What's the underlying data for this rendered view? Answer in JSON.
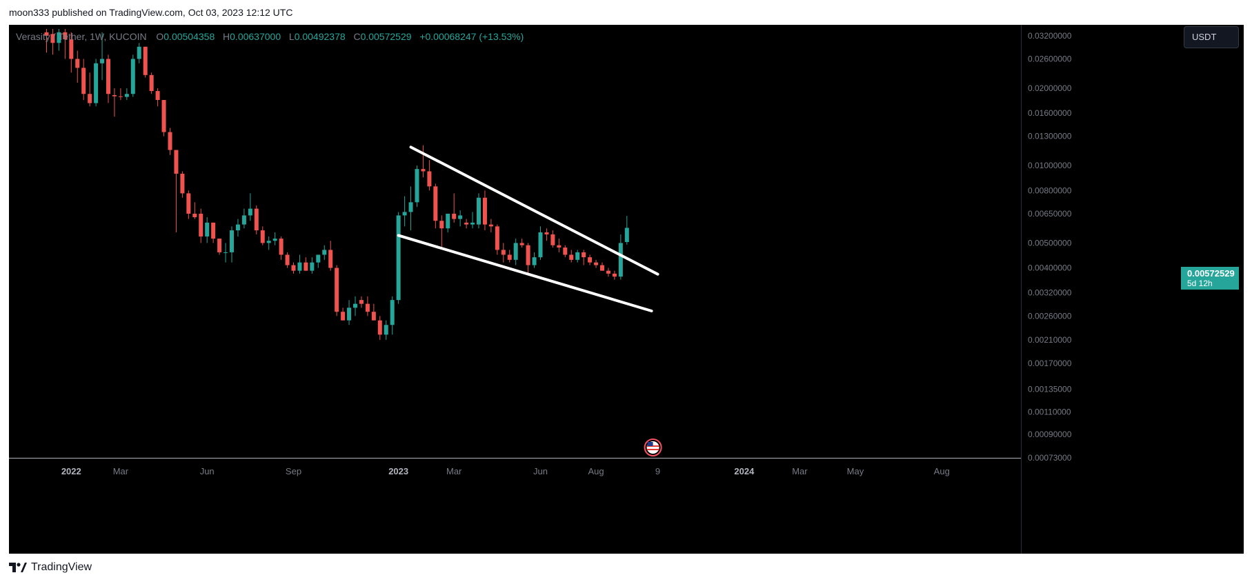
{
  "caption": "moon333 published on TradingView.com, Oct 03, 2023 12:12 UTC",
  "legend": {
    "symbol": "Verasity / Tether, 1W, KUCOIN",
    "o_label": "O",
    "o_value": "0.00504358",
    "h_label": "H",
    "h_value": "0.00637000",
    "l_label": "L",
    "l_value": "0.00492378",
    "c_label": "C",
    "c_value": "0.00572529",
    "change": "+0.00068247 (+13.53%)"
  },
  "unit_button": "USDT",
  "last_price": {
    "price": "0.00572529",
    "countdown": "5d 12h"
  },
  "footer_brand": "TradingView",
  "colors": {
    "up": "#26a69a",
    "down": "#ef5350",
    "background": "#000000",
    "trendline": "#ffffff",
    "axis_text": "#787b86"
  },
  "chart_data": {
    "type": "candlestick",
    "interval": "1W",
    "exchange": "KUCOIN",
    "y_scale": "log",
    "ylim": [
      0.00073,
      0.034
    ],
    "y_ticks": [
      "0.03200000",
      "0.02600000",
      "0.02000000",
      "0.01600000",
      "0.01300000",
      "0.01000000",
      "0.00800000",
      "0.00650000",
      "0.00500000",
      "0.00400000",
      "0.00320000",
      "0.00260000",
      "0.00210000",
      "0.00170000",
      "0.00135000",
      "0.00110000",
      "0.00090000",
      "0.00073000"
    ],
    "x_ticks": [
      {
        "label": "2022",
        "bold": true,
        "index": 4
      },
      {
        "label": "Mar",
        "bold": false,
        "index": 12
      },
      {
        "label": "Jun",
        "bold": false,
        "index": 26
      },
      {
        "label": "Sep",
        "bold": false,
        "index": 40
      },
      {
        "label": "2023",
        "bold": true,
        "index": 57
      },
      {
        "label": "Mar",
        "bold": false,
        "index": 66
      },
      {
        "label": "Jun",
        "bold": false,
        "index": 80
      },
      {
        "label": "Aug",
        "bold": false,
        "index": 89
      },
      {
        "label": "9",
        "bold": false,
        "index": 99
      },
      {
        "label": "2024",
        "bold": true,
        "index": 113
      },
      {
        "label": "Mar",
        "bold": false,
        "index": 122
      },
      {
        "label": "May",
        "bold": false,
        "index": 131
      },
      {
        "label": "Aug",
        "bold": false,
        "index": 145
      }
    ],
    "candles": [
      {
        "o": 0.033,
        "h": 0.034,
        "l": 0.0275,
        "c": 0.032
      },
      {
        "o": 0.0325,
        "h": 0.034,
        "l": 0.027,
        "c": 0.03
      },
      {
        "o": 0.03,
        "h": 0.034,
        "l": 0.028,
        "c": 0.033
      },
      {
        "o": 0.033,
        "h": 0.034,
        "l": 0.026,
        "c": 0.031
      },
      {
        "o": 0.031,
        "h": 0.033,
        "l": 0.023,
        "c": 0.026
      },
      {
        "o": 0.026,
        "h": 0.028,
        "l": 0.021,
        "c": 0.024
      },
      {
        "o": 0.024,
        "h": 0.026,
        "l": 0.018,
        "c": 0.019
      },
      {
        "o": 0.019,
        "h": 0.023,
        "l": 0.017,
        "c": 0.0175
      },
      {
        "o": 0.0175,
        "h": 0.026,
        "l": 0.017,
        "c": 0.025
      },
      {
        "o": 0.025,
        "h": 0.033,
        "l": 0.0215,
        "c": 0.026
      },
      {
        "o": 0.026,
        "h": 0.027,
        "l": 0.0175,
        "c": 0.019
      },
      {
        "o": 0.0188,
        "h": 0.02,
        "l": 0.0155,
        "c": 0.0186
      },
      {
        "o": 0.0186,
        "h": 0.02,
        "l": 0.018,
        "c": 0.0185
      },
      {
        "o": 0.0185,
        "h": 0.02,
        "l": 0.018,
        "c": 0.019
      },
      {
        "o": 0.019,
        "h": 0.027,
        "l": 0.0185,
        "c": 0.026
      },
      {
        "o": 0.026,
        "h": 0.03,
        "l": 0.025,
        "c": 0.029
      },
      {
        "o": 0.029,
        "h": 0.029,
        "l": 0.022,
        "c": 0.0225
      },
      {
        "o": 0.0225,
        "h": 0.023,
        "l": 0.019,
        "c": 0.0195
      },
      {
        "o": 0.0195,
        "h": 0.02,
        "l": 0.017,
        "c": 0.018
      },
      {
        "o": 0.018,
        "h": 0.018,
        "l": 0.013,
        "c": 0.0135
      },
      {
        "o": 0.0135,
        "h": 0.014,
        "l": 0.011,
        "c": 0.0115
      },
      {
        "o": 0.0115,
        "h": 0.0115,
        "l": 0.0055,
        "c": 0.0093
      },
      {
        "o": 0.0093,
        "h": 0.0095,
        "l": 0.0075,
        "c": 0.0078
      },
      {
        "o": 0.0078,
        "h": 0.008,
        "l": 0.0062,
        "c": 0.0065
      },
      {
        "o": 0.0065,
        "h": 0.0072,
        "l": 0.0062,
        "c": 0.0063
      },
      {
        "o": 0.0065,
        "h": 0.0068,
        "l": 0.005,
        "c": 0.0053
      },
      {
        "o": 0.0053,
        "h": 0.0063,
        "l": 0.005,
        "c": 0.006
      },
      {
        "o": 0.006,
        "h": 0.006,
        "l": 0.005,
        "c": 0.0052
      },
      {
        "o": 0.0052,
        "h": 0.0052,
        "l": 0.0045,
        "c": 0.0046
      },
      {
        "o": 0.0046,
        "h": 0.005,
        "l": 0.0042,
        "c": 0.0046
      },
      {
        "o": 0.0046,
        "h": 0.0058,
        "l": 0.0042,
        "c": 0.0056
      },
      {
        "o": 0.0056,
        "h": 0.0062,
        "l": 0.0053,
        "c": 0.0059
      },
      {
        "o": 0.0059,
        "h": 0.0068,
        "l": 0.0057,
        "c": 0.0064
      },
      {
        "o": 0.0064,
        "h": 0.0078,
        "l": 0.0061,
        "c": 0.0068
      },
      {
        "o": 0.0068,
        "h": 0.007,
        "l": 0.0054,
        "c": 0.0056
      },
      {
        "o": 0.0056,
        "h": 0.0058,
        "l": 0.0049,
        "c": 0.005
      },
      {
        "o": 0.005,
        "h": 0.0053,
        "l": 0.0047,
        "c": 0.0051
      },
      {
        "o": 0.0051,
        "h": 0.0055,
        "l": 0.0049,
        "c": 0.0052
      },
      {
        "o": 0.0052,
        "h": 0.0053,
        "l": 0.0043,
        "c": 0.0045
      },
      {
        "o": 0.0045,
        "h": 0.0046,
        "l": 0.004,
        "c": 0.0041
      },
      {
        "o": 0.0041,
        "h": 0.0042,
        "l": 0.0038,
        "c": 0.0039
      },
      {
        "o": 0.0039,
        "h": 0.0045,
        "l": 0.0038,
        "c": 0.0042
      },
      {
        "o": 0.0042,
        "h": 0.0044,
        "l": 0.0039,
        "c": 0.0039
      },
      {
        "o": 0.0039,
        "h": 0.0044,
        "l": 0.0038,
        "c": 0.0042
      },
      {
        "o": 0.0042,
        "h": 0.0045,
        "l": 0.004,
        "c": 0.0045
      },
      {
        "o": 0.0045,
        "h": 0.0049,
        "l": 0.0043,
        "c": 0.0047
      },
      {
        "o": 0.0047,
        "h": 0.0051,
        "l": 0.0039,
        "c": 0.004
      },
      {
        "o": 0.004,
        "h": 0.0041,
        "l": 0.0026,
        "c": 0.0027
      },
      {
        "o": 0.0027,
        "h": 0.0028,
        "l": 0.0025,
        "c": 0.0025
      },
      {
        "o": 0.0025,
        "h": 0.003,
        "l": 0.0024,
        "c": 0.0028
      },
      {
        "o": 0.0028,
        "h": 0.0031,
        "l": 0.0026,
        "c": 0.0029
      },
      {
        "o": 0.003,
        "h": 0.0031,
        "l": 0.0028,
        "c": 0.0029
      },
      {
        "o": 0.0029,
        "h": 0.0031,
        "l": 0.0026,
        "c": 0.0027
      },
      {
        "o": 0.0027,
        "h": 0.0029,
        "l": 0.0025,
        "c": 0.0025
      },
      {
        "o": 0.0025,
        "h": 0.0026,
        "l": 0.0021,
        "c": 0.0022
      },
      {
        "o": 0.0022,
        "h": 0.0025,
        "l": 0.0021,
        "c": 0.0024
      },
      {
        "o": 0.0024,
        "h": 0.0031,
        "l": 0.0022,
        "c": 0.003
      },
      {
        "o": 0.003,
        "h": 0.0066,
        "l": 0.0029,
        "c": 0.0064
      },
      {
        "o": 0.0064,
        "h": 0.0076,
        "l": 0.0058,
        "c": 0.0066
      },
      {
        "o": 0.0066,
        "h": 0.0083,
        "l": 0.0056,
        "c": 0.0072
      },
      {
        "o": 0.0072,
        "h": 0.01,
        "l": 0.0069,
        "c": 0.0097
      },
      {
        "o": 0.0097,
        "h": 0.012,
        "l": 0.009,
        "c": 0.0095
      },
      {
        "o": 0.0095,
        "h": 0.0105,
        "l": 0.008,
        "c": 0.0083
      },
      {
        "o": 0.0083,
        "h": 0.0085,
        "l": 0.0057,
        "c": 0.0061
      },
      {
        "o": 0.0061,
        "h": 0.0064,
        "l": 0.0048,
        "c": 0.0057
      },
      {
        "o": 0.0057,
        "h": 0.0064,
        "l": 0.0055,
        "c": 0.0065
      },
      {
        "o": 0.0065,
        "h": 0.0078,
        "l": 0.006,
        "c": 0.0062
      },
      {
        "o": 0.0062,
        "h": 0.0067,
        "l": 0.0058,
        "c": 0.0064
      },
      {
        "o": 0.006,
        "h": 0.0062,
        "l": 0.0057,
        "c": 0.0059
      },
      {
        "o": 0.0059,
        "h": 0.0066,
        "l": 0.0057,
        "c": 0.006
      },
      {
        "o": 0.0059,
        "h": 0.0078,
        "l": 0.0057,
        "c": 0.0075
      },
      {
        "o": 0.0075,
        "h": 0.008,
        "l": 0.0056,
        "c": 0.0059
      },
      {
        "o": 0.0059,
        "h": 0.0062,
        "l": 0.0055,
        "c": 0.0058
      },
      {
        "o": 0.0058,
        "h": 0.0059,
        "l": 0.0045,
        "c": 0.0047
      },
      {
        "o": 0.0047,
        "h": 0.005,
        "l": 0.0042,
        "c": 0.0045
      },
      {
        "o": 0.0045,
        "h": 0.0047,
        "l": 0.0042,
        "c": 0.0043
      },
      {
        "o": 0.0043,
        "h": 0.0052,
        "l": 0.0041,
        "c": 0.005
      },
      {
        "o": 0.005,
        "h": 0.0052,
        "l": 0.0048,
        "c": 0.0049
      },
      {
        "o": 0.0049,
        "h": 0.005,
        "l": 0.0038,
        "c": 0.0041
      },
      {
        "o": 0.0041,
        "h": 0.0046,
        "l": 0.004,
        "c": 0.0044
      },
      {
        "o": 0.0044,
        "h": 0.0058,
        "l": 0.0043,
        "c": 0.0055
      },
      {
        "o": 0.0055,
        "h": 0.0057,
        "l": 0.0051,
        "c": 0.0054
      },
      {
        "o": 0.0054,
        "h": 0.0056,
        "l": 0.0048,
        "c": 0.0049
      },
      {
        "o": 0.0049,
        "h": 0.0052,
        "l": 0.0046,
        "c": 0.0048
      },
      {
        "o": 0.0048,
        "h": 0.0049,
        "l": 0.0044,
        "c": 0.0045
      },
      {
        "o": 0.0045,
        "h": 0.0047,
        "l": 0.0042,
        "c": 0.0043
      },
      {
        "o": 0.0043,
        "h": 0.0047,
        "l": 0.0042,
        "c": 0.0046
      },
      {
        "o": 0.0046,
        "h": 0.0047,
        "l": 0.0041,
        "c": 0.0044
      },
      {
        "o": 0.0044,
        "h": 0.0045,
        "l": 0.0041,
        "c": 0.0042
      },
      {
        "o": 0.0042,
        "h": 0.0043,
        "l": 0.004,
        "c": 0.0041
      },
      {
        "o": 0.0041,
        "h": 0.0042,
        "l": 0.0039,
        "c": 0.0039
      },
      {
        "o": 0.0039,
        "h": 0.004,
        "l": 0.0037,
        "c": 0.0038
      },
      {
        "o": 0.0038,
        "h": 0.0039,
        "l": 0.0036,
        "c": 0.0037
      },
      {
        "o": 0.0037,
        "h": 0.0054,
        "l": 0.0036,
        "c": 0.005
      },
      {
        "o": 0.00504358,
        "h": 0.00637,
        "l": 0.00492378,
        "c": 0.00572529
      }
    ],
    "trendlines": [
      {
        "from": {
          "index": 59,
          "price": 0.0118
        },
        "to": {
          "index": 99,
          "price": 0.00378
        }
      },
      {
        "from": {
          "index": 57,
          "price": 0.00535
        },
        "to": {
          "index": 98,
          "price": 0.00272
        }
      }
    ]
  }
}
